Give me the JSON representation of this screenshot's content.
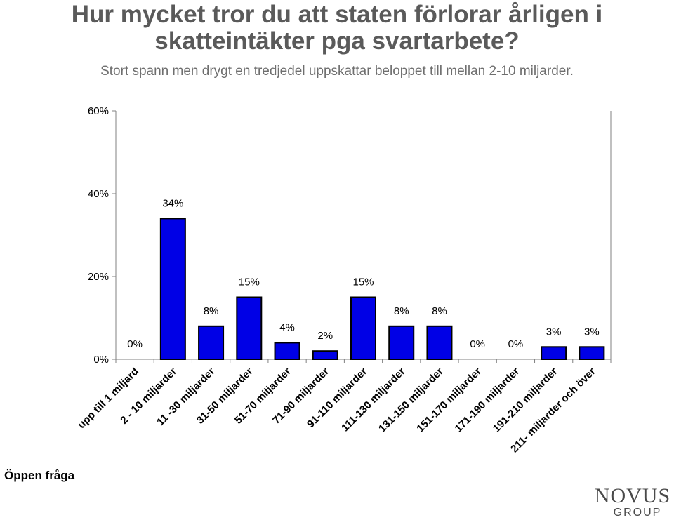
{
  "header": {
    "title_line1": "Hur mycket tror du att staten förlorar årligen i",
    "title_line2": "skatteintäkter pga svartarbete?",
    "subtitle": "Stort spann men drygt en tredjedel uppskattar beloppet till mellan 2-10 miljarder."
  },
  "footnote": "Öppen fråga",
  "logo": {
    "word1": "NOVUS",
    "word2": "GROUP"
  },
  "colors": {
    "bar": "#0000e6",
    "bar_outline": "#000000",
    "title": "#5a5a5a",
    "subtitle": "#6e6e6e"
  },
  "chart_data": {
    "type": "bar",
    "categories": [
      "upp till 1 miljard",
      "2 - 10 miljarder",
      "11 -30 miljarder",
      "31-50 miljarder",
      "51-70 miljarder",
      "71-90 miljarder",
      "91-110 miljarder",
      "111-130 miljarder",
      "131-150 miljarder",
      "151-170 miljarder",
      "171-190 miljarder",
      "191-210 miljarder",
      "211- miljarder och över"
    ],
    "values": [
      0,
      34,
      8,
      15,
      4,
      2,
      15,
      8,
      8,
      0,
      0,
      3,
      3
    ],
    "data_labels": [
      "0%",
      "34%",
      "8%",
      "15%",
      "4%",
      "2%",
      "15%",
      "8%",
      "8%",
      "0%",
      "0%",
      "3%",
      "3%"
    ],
    "y_ticks": [
      0,
      20,
      40,
      60
    ],
    "y_tick_labels": [
      "0%",
      "20%",
      "40%",
      "60%"
    ],
    "ylim": [
      0,
      60
    ],
    "grid": false,
    "legend": "none"
  }
}
